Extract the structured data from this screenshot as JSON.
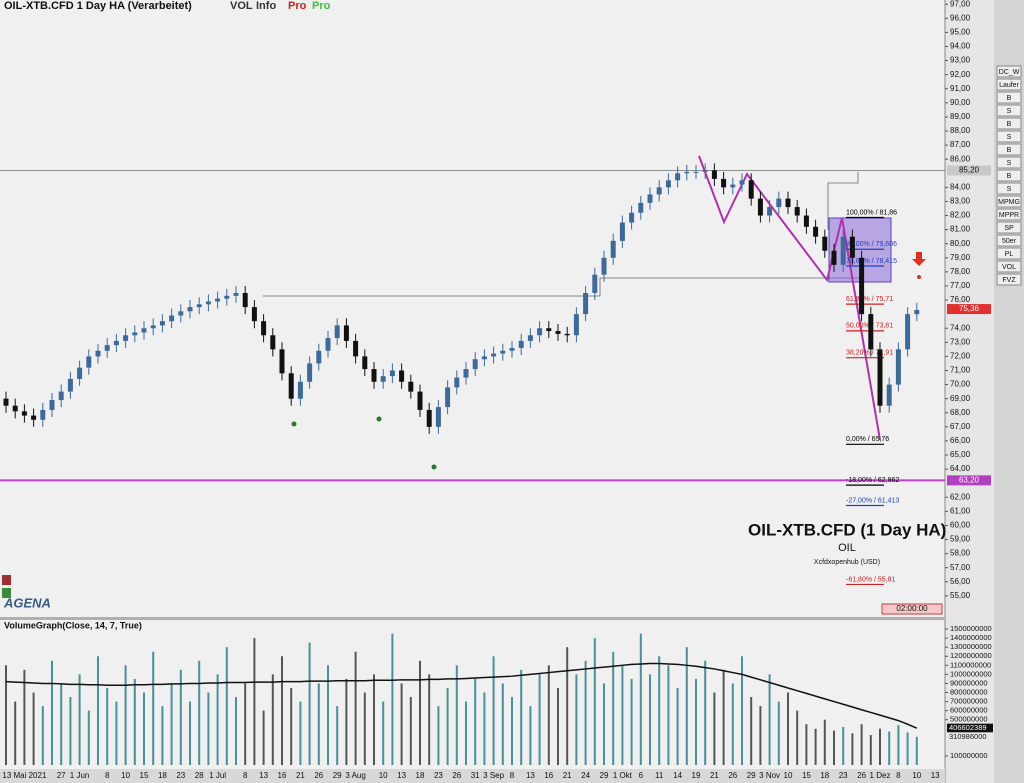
{
  "header": {
    "menu": [
      "VOL",
      "Info",
      "Pro",
      "Pro"
    ]
  },
  "toolbar": [
    "DC_W",
    "Laufer",
    "B",
    "S",
    "B",
    "S",
    "B",
    "S",
    "B",
    "S",
    "MPMG",
    "MPPR",
    "SP",
    "50er",
    "PL",
    "VOL",
    "FVZ"
  ],
  "logo": "AGENA",
  "time_box": "02:00:00",
  "chart_data": [
    {
      "type": "candlestick",
      "title": "OIL-XTB.CFD 1 Day HA (Verarbeitet)",
      "watermark": {
        "title": "OIL-XTB.CFD (1 Day HA)",
        "symbol": "OIL",
        "source": "Xcfdxopenhub   (USD)"
      },
      "up_color": "#3d6a9a",
      "down_color": "#111111",
      "categories": [
        null,
        null,
        "13 Mai 2021",
        null,
        null,
        null,
        "27",
        null,
        "1 Jun",
        null,
        null,
        "8",
        null,
        "10",
        null,
        "15",
        null,
        "18",
        null,
        "23",
        null,
        "28",
        null,
        "1 Jul",
        null,
        null,
        "8",
        null,
        "13",
        null,
        "16",
        null,
        "21",
        null,
        "26",
        null,
        "29",
        null,
        "3 Aug",
        null,
        null,
        "10",
        null,
        "13",
        null,
        "18",
        null,
        "23",
        null,
        "26",
        null,
        "31",
        null,
        "3 Sep",
        null,
        "8",
        null,
        "13",
        null,
        "16",
        null,
        "21",
        null,
        "24",
        null,
        "29",
        null,
        "1 Okt",
        null,
        "6",
        null,
        "11",
        null,
        "14",
        null,
        "19",
        null,
        "21",
        null,
        "26",
        null,
        "29",
        null,
        "3 Nov",
        null,
        "10",
        null,
        "15",
        null,
        "18",
        null,
        "23",
        null,
        "26",
        null,
        "1 Dez",
        null,
        "8",
        null,
        "10",
        null,
        "13"
      ],
      "open": [
        69.0,
        68.5,
        68.1,
        67.8,
        67.5,
        68.2,
        68.9,
        69.5,
        70.4,
        71.2,
        72.0,
        72.4,
        72.8,
        73.1,
        73.5,
        73.7,
        74.0,
        74.2,
        74.5,
        74.9,
        75.2,
        75.5,
        75.7,
        75.9,
        76.1,
        76.3,
        76.5,
        75.5,
        74.5,
        73.5,
        72.5,
        70.8,
        69.0,
        70.2,
        71.5,
        72.4,
        73.3,
        74.2,
        73.1,
        72.0,
        71.1,
        70.2,
        70.6,
        71.0,
        70.2,
        69.5,
        68.2,
        67.0,
        68.4,
        69.8,
        70.5,
        71.1,
        71.8,
        72.0,
        72.2,
        72.4,
        72.6,
        73.1,
        73.5,
        74.0,
        73.8,
        73.6,
        73.5,
        75.0,
        76.5,
        77.8,
        79.0,
        80.2,
        81.5,
        82.2,
        82.9,
        83.5,
        84.0,
        84.5,
        85.0,
        85.1,
        85.1,
        85.2,
        84.6,
        84.0,
        84.2,
        84.5,
        83.2,
        82.0,
        82.6,
        83.2,
        82.6,
        82.0,
        81.2,
        80.5,
        79.5,
        78.5,
        80.5,
        79.0,
        75.0,
        72.5,
        68.5,
        70.0,
        72.5,
        75.0,
        null,
        null
      ],
      "high": [
        69.5,
        69.0,
        68.6,
        68.3,
        68.7,
        69.4,
        70.0,
        70.9,
        71.7,
        72.5,
        72.9,
        73.3,
        73.6,
        74.0,
        74.2,
        74.5,
        74.7,
        75.0,
        75.4,
        75.7,
        76.0,
        76.2,
        76.4,
        76.6,
        76.8,
        77.0,
        77.0,
        76.0,
        75.0,
        74.0,
        73.0,
        71.3,
        70.7,
        72.0,
        72.9,
        73.8,
        74.7,
        74.7,
        73.6,
        72.5,
        71.6,
        71.1,
        71.5,
        71.5,
        70.7,
        70.0,
        68.7,
        68.9,
        70.3,
        71.0,
        71.6,
        72.3,
        72.5,
        72.7,
        72.9,
        73.1,
        73.6,
        74.0,
        74.5,
        74.5,
        74.3,
        74.1,
        75.5,
        77.0,
        78.3,
        79.5,
        80.7,
        82.0,
        82.7,
        83.4,
        84.0,
        84.5,
        85.0,
        85.5,
        85.6,
        85.6,
        85.7,
        85.7,
        85.1,
        84.7,
        85.0,
        85.0,
        83.7,
        83.1,
        83.7,
        83.7,
        83.1,
        82.5,
        81.7,
        81.0,
        80.0,
        81.0,
        81.0,
        79.5,
        75.5,
        73.0,
        70.5,
        73.0,
        75.5,
        75.8,
        null,
        null
      ],
      "low": [
        68.0,
        67.6,
        67.3,
        67.0,
        67.0,
        67.7,
        68.4,
        69.0,
        69.9,
        70.7,
        71.5,
        71.9,
        72.3,
        72.6,
        73.0,
        73.2,
        73.5,
        73.7,
        74.0,
        74.4,
        74.7,
        75.0,
        75.2,
        75.4,
        75.6,
        75.8,
        75.0,
        74.0,
        73.0,
        72.0,
        70.3,
        68.5,
        68.5,
        69.7,
        71.0,
        71.9,
        72.8,
        72.6,
        71.5,
        70.6,
        69.7,
        69.7,
        70.1,
        69.7,
        69.0,
        67.7,
        66.5,
        66.5,
        67.9,
        69.3,
        70.0,
        70.6,
        71.3,
        71.5,
        71.7,
        71.9,
        72.1,
        72.6,
        73.0,
        73.3,
        73.1,
        73.0,
        73.0,
        74.5,
        76.0,
        77.3,
        78.5,
        79.7,
        81.0,
        81.7,
        82.4,
        83.0,
        83.5,
        84.0,
        84.5,
        84.6,
        84.6,
        84.1,
        83.5,
        83.5,
        83.7,
        82.7,
        81.5,
        81.5,
        82.1,
        82.1,
        81.5,
        80.7,
        80.0,
        79.0,
        78.0,
        78.0,
        78.5,
        74.5,
        72.0,
        68.0,
        68.0,
        69.5,
        72.0,
        74.5,
        null,
        null
      ],
      "close": [
        68.5,
        68.1,
        67.8,
        67.5,
        68.2,
        68.9,
        69.5,
        70.4,
        71.2,
        72.0,
        72.4,
        72.8,
        73.1,
        73.5,
        73.7,
        74.0,
        74.2,
        74.5,
        74.9,
        75.2,
        75.5,
        75.7,
        75.9,
        76.1,
        76.3,
        76.5,
        75.5,
        74.5,
        73.5,
        72.5,
        70.8,
        69.0,
        70.2,
        71.5,
        72.4,
        73.3,
        74.2,
        73.1,
        72.0,
        71.1,
        70.2,
        70.6,
        71.0,
        70.2,
        69.5,
        68.2,
        67.0,
        68.4,
        69.8,
        70.5,
        71.1,
        71.8,
        72.0,
        72.2,
        72.4,
        72.6,
        73.1,
        73.5,
        74.0,
        73.8,
        73.6,
        73.5,
        75.0,
        76.5,
        77.8,
        79.0,
        80.2,
        81.5,
        82.2,
        82.9,
        83.5,
        84.0,
        84.5,
        85.0,
        85.1,
        85.1,
        85.2,
        84.6,
        84.0,
        84.2,
        84.5,
        83.2,
        82.0,
        82.6,
        83.2,
        82.6,
        82.0,
        81.2,
        80.5,
        79.5,
        78.5,
        80.5,
        79.0,
        75.0,
        72.5,
        68.5,
        70.0,
        72.5,
        75.0,
        75.3,
        null,
        null
      ],
      "ylim": [
        53.5,
        97.3
      ],
      "yticks": [
        {
          "value": 97,
          "label": "97,00"
        },
        {
          "value": 96,
          "label": "96,00"
        },
        {
          "value": 95,
          "label": "95,00"
        },
        {
          "value": 94,
          "label": "94,00"
        },
        {
          "value": 93,
          "label": "93,00"
        },
        {
          "value": 92,
          "label": "92,00"
        },
        {
          "value": 91,
          "label": "91,00"
        },
        {
          "value": 90,
          "label": "90,00"
        },
        {
          "value": 89,
          "label": "89,00"
        },
        {
          "value": 88,
          "label": "88,00"
        },
        {
          "value": 87,
          "label": "87,00"
        },
        {
          "value": 86,
          "label": "86,00"
        },
        {
          "value": 84,
          "label": "84,00"
        },
        {
          "value": 83,
          "label": "83,00"
        },
        {
          "value": 82,
          "label": "82,00"
        },
        {
          "value": 81,
          "label": "81,00"
        },
        {
          "value": 80,
          "label": "80,00"
        },
        {
          "value": 79,
          "label": "79,00"
        },
        {
          "value": 78,
          "label": "78,00"
        },
        {
          "value": 77,
          "label": "77,00"
        },
        {
          "value": 76,
          "label": "76,00"
        },
        {
          "value": 74,
          "label": "74,00"
        },
        {
          "value": 73,
          "label": "73,00"
        },
        {
          "value": 72,
          "label": "72,00"
        },
        {
          "value": 71,
          "label": "71,00"
        },
        {
          "value": 70,
          "label": "70,00"
        },
        {
          "value": 69,
          "label": "69,00"
        },
        {
          "value": 68,
          "label": "68,00"
        },
        {
          "value": 67,
          "label": "67,00"
        },
        {
          "value": 66,
          "label": "66,00"
        },
        {
          "value": 65,
          "label": "65,00"
        },
        {
          "value": 64,
          "label": "64,00"
        },
        {
          "value": 62,
          "label": "62,00"
        },
        {
          "value": 61,
          "label": "61,00"
        },
        {
          "value": 60,
          "label": "60,00"
        },
        {
          "value": 59,
          "label": "59,00"
        },
        {
          "value": 58,
          "label": "58,00"
        },
        {
          "value": 57,
          "label": "57,00"
        },
        {
          "value": 56,
          "label": "56,00"
        },
        {
          "value": 55,
          "label": "55,00"
        }
      ],
      "price_markers": [
        {
          "value": 85.2,
          "label": "85,20",
          "color": "#c8c8c8",
          "line": "#555555"
        },
        {
          "value": 75.36,
          "label": "75,36",
          "color": "#e03030",
          "line": null
        },
        {
          "value": 63.2,
          "label": "63,20",
          "color": "#b040c0",
          "line": "#c040d0"
        }
      ],
      "fib_levels": [
        {
          "value": 81.86,
          "label": "100,00% / 81,86",
          "color": "#000000"
        },
        {
          "value": 79.606,
          "label": "86,00% / 79,606",
          "color": "#2040c0"
        },
        {
          "value": 78.415,
          "label": "78,60% / 78,415",
          "color": "#2040c0"
        },
        {
          "value": 75.71,
          "label": "61,80% / 75,71",
          "color": "#d02020"
        },
        {
          "value": 73.81,
          "label": "50,00% / 73,81",
          "color": "#d02020"
        },
        {
          "value": 71.91,
          "label": "38,20% / 71,91",
          "color": "#d02020"
        },
        {
          "value": 65.76,
          "label": "0,00% / 65,76",
          "color": "#000000"
        },
        {
          "value": 62.862,
          "label": "-18,00% / 62,862",
          "color": "#000000"
        },
        {
          "value": 61.413,
          "label": "-27,00% / 61,413",
          "color": "#2040c0"
        },
        {
          "value": 55.81,
          "label": "-61,80% / 55,81",
          "color": "#d02020"
        }
      ]
    },
    {
      "type": "volume",
      "title": "VolumeGraph(Close, 14, 7, True)",
      "up_color": "#4a9098",
      "down_color": "#555555",
      "series": [
        {
          "name": "Volume",
          "values": [
            1100000000,
            700000000,
            1050000000,
            800000000,
            650000000,
            1150000000,
            900000000,
            750000000,
            1000000000,
            600000000,
            1200000000,
            850000000,
            700000000,
            1100000000,
            950000000,
            800000000,
            1250000000,
            650000000,
            900000000,
            1050000000,
            700000000,
            1150000000,
            800000000,
            1000000000,
            1300000000,
            750000000,
            900000000,
            1400000000,
            600000000,
            1000000000,
            1200000000,
            850000000,
            700000000,
            1350000000,
            900000000,
            1100000000,
            650000000,
            950000000,
            1250000000,
            800000000,
            1000000000,
            700000000,
            1450000000,
            900000000,
            750000000,
            1150000000,
            1000000000,
            650000000,
            850000000,
            1100000000,
            700000000,
            950000000,
            800000000,
            1200000000,
            900000000,
            750000000,
            1050000000,
            650000000,
            1000000000,
            1100000000,
            850000000,
            1300000000,
            1000000000,
            1150000000,
            1400000000,
            900000000,
            1250000000,
            1100000000,
            950000000,
            1450000000,
            1000000000,
            1200000000,
            1100000000,
            850000000,
            1300000000,
            950000000,
            1150000000,
            800000000,
            1050000000,
            900000000,
            1200000000,
            750000000,
            650000000,
            1000000000,
            700000000,
            800000000,
            600000000,
            450000000,
            400000000,
            500000000,
            380000000,
            420000000,
            350000000,
            450000000,
            330000000,
            400000000,
            370000000,
            440000000,
            360000000,
            310986000,
            null,
            null
          ]
        },
        {
          "name": "Average",
          "color": "#111111",
          "values": [
            920000000,
            915000000,
            910000000,
            905000000,
            900000000,
            900000000,
            895000000,
            890000000,
            890000000,
            885000000,
            885000000,
            880000000,
            880000000,
            880000000,
            885000000,
            885000000,
            890000000,
            890000000,
            895000000,
            895000000,
            900000000,
            900000000,
            905000000,
            905000000,
            910000000,
            910000000,
            910000000,
            915000000,
            915000000,
            915000000,
            920000000,
            920000000,
            920000000,
            925000000,
            925000000,
            925000000,
            930000000,
            930000000,
            930000000,
            930000000,
            935000000,
            935000000,
            935000000,
            940000000,
            940000000,
            940000000,
            945000000,
            945000000,
            950000000,
            950000000,
            955000000,
            960000000,
            965000000,
            970000000,
            975000000,
            980000000,
            990000000,
            1000000000,
            1010000000,
            1020000000,
            1030000000,
            1040000000,
            1050000000,
            1060000000,
            1070000000,
            1080000000,
            1090000000,
            1100000000,
            1110000000,
            1115000000,
            1120000000,
            1120000000,
            1115000000,
            1110000000,
            1100000000,
            1090000000,
            1075000000,
            1060000000,
            1040000000,
            1020000000,
            1000000000,
            970000000,
            940000000,
            910000000,
            880000000,
            850000000,
            820000000,
            790000000,
            760000000,
            730000000,
            700000000,
            670000000,
            640000000,
            610000000,
            580000000,
            550000000,
            520000000,
            490000000,
            450000000,
            406602389,
            null,
            null
          ]
        }
      ],
      "ylim": [
        0,
        1600000000
      ],
      "yticks": [
        1500000000,
        1400000000,
        1300000000,
        1200000000,
        1100000000,
        1000000000,
        900000000,
        800000000,
        700000000,
        600000000,
        500000000,
        100000000
      ],
      "ymarkers": [
        406602389,
        310986000
      ]
    }
  ]
}
